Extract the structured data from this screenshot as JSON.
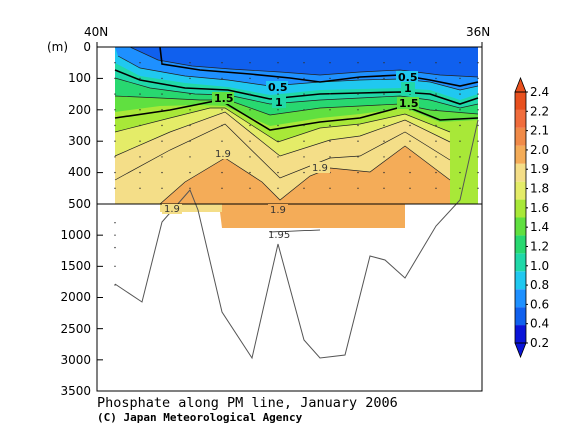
{
  "chart_data": {
    "type": "heatmap",
    "title": "Phosphate along PM line, January 2006",
    "credit": "(C) Japan Meteorological Agency",
    "x_tick_labels": [
      "40N",
      "36N"
    ],
    "y_unit": "(m)",
    "y_ticks_upper": [
      0,
      100,
      200,
      300,
      400,
      500
    ],
    "y_ticks_lower": [
      1000,
      1500,
      2000,
      2500,
      3000,
      3500
    ],
    "colorbar": {
      "levels": [
        0.2,
        0.4,
        0.6,
        0.8,
        1.0,
        1.2,
        1.4,
        1.6,
        1.8,
        1.9,
        2.0,
        2.1,
        2.2,
        2.4
      ],
      "labels": [
        "0.2",
        "0.4",
        "0.6",
        "0.8",
        "1.0",
        "1.2",
        "1.4",
        "1.6",
        "1.8",
        "1.9",
        "2.0",
        "2.1",
        "2.2",
        "2.4"
      ],
      "colors": [
        "#0a14d8",
        "#1060ee",
        "#1e90ff",
        "#20c8f0",
        "#20d8a8",
        "#28d870",
        "#60e040",
        "#a8e838",
        "#e4ec68",
        "#f4de88",
        "#f4ac58",
        "#f08a48",
        "#f06c3c",
        "#e8501e"
      ]
    },
    "contour_labels": [
      "0.5",
      "0.5",
      "1",
      "1",
      "1.5",
      "1.5",
      "1.9",
      "1.9",
      "1.9",
      "1.9",
      "1.95"
    ]
  }
}
